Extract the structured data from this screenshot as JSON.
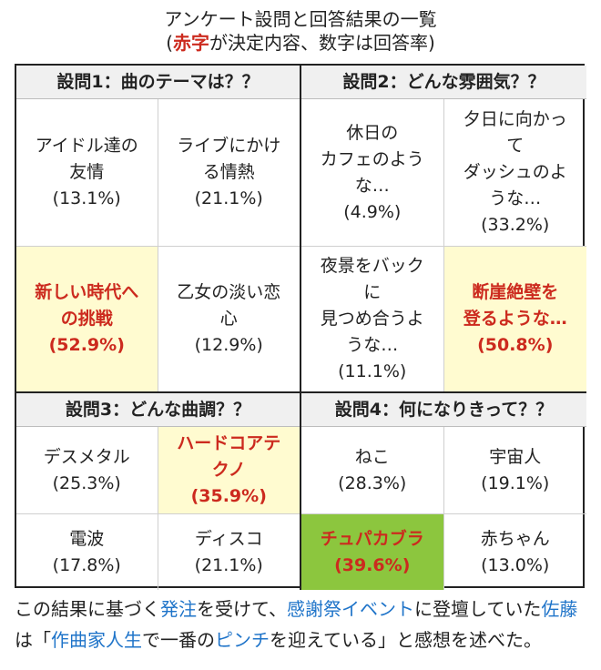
{
  "caption": {
    "line1": "アンケート設問と回答結果の一覧",
    "paren_open": "(",
    "red_word": "赤字",
    "line2_rest": "が決定内容、数字は回答率)"
  },
  "questions": [
    {
      "title": "設問1：曲のテーマは？？",
      "answers": [
        {
          "text": "アイドル達の\n友情",
          "pct": "(13.1%)",
          "selected": false
        },
        {
          "text": "ライブにかけ\nる情熱",
          "pct": "(21.1%)",
          "selected": false
        },
        {
          "text": "新しい時代へ\nの挑戦",
          "pct": "(52.9%)",
          "selected": true
        },
        {
          "text": "乙女の淡い恋\n心",
          "pct": "(12.9%)",
          "selected": false
        }
      ]
    },
    {
      "title": "設問2：どんな雰囲気？？",
      "answers": [
        {
          "text": "休日の\nカフェのよう\nな…",
          "pct": "(4.9%)",
          "selected": false
        },
        {
          "text": "夕日に向かっ\nて\nダッシュのよ\nうな…",
          "pct": "(33.2%)",
          "selected": false
        },
        {
          "text": "夜景をバック\nに\n見つめ合うよ\nうな…",
          "pct": "(11.1%)",
          "selected": false
        },
        {
          "text": "断崖絶壁を\n登るような…",
          "pct": "(50.8%)",
          "selected": true
        }
      ]
    },
    {
      "title": "設問3：どんな曲調？？",
      "answers": [
        {
          "text": "デスメタル",
          "pct": "(25.3%)",
          "selected": false
        },
        {
          "text": "ハードコアテ\nクノ",
          "pct": "(35.9%)",
          "selected": true
        },
        {
          "text": "電波",
          "pct": "(17.8%)",
          "selected": false
        },
        {
          "text": "ディスコ",
          "pct": "(21.1%)",
          "selected": false
        }
      ]
    },
    {
      "title": "設問4：何になりきって？？",
      "answers": [
        {
          "text": "ねこ",
          "pct": "(28.3%)",
          "selected": false
        },
        {
          "text": "宇宙人",
          "pct": "(19.1%)",
          "selected": false
        },
        {
          "text": "チュパカブラ",
          "pct": "(39.6%)",
          "selected": true
        },
        {
          "text": "赤ちゃん",
          "pct": "(13.0%)",
          "selected": false
        }
      ]
    }
  ],
  "footer": {
    "p1": "この結果に基づく",
    "l1": "発注",
    "p2": "を受けて、",
    "l2": "感謝祭イベント",
    "p3": "に登壇していた",
    "l3": "佐藤",
    "p4": "は「",
    "l4": "作曲家人生",
    "p5": "で一番の",
    "l5": "ピンチ",
    "p6": "を迎えている」と感想を述べた。"
  },
  "colors": {
    "selected_text": "#cc2a1e",
    "selected_bg": "#fffbd0",
    "highlight_bg": "#8cc63e",
    "link": "#1f74c9"
  }
}
